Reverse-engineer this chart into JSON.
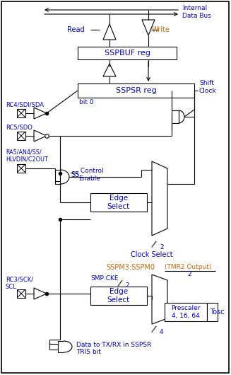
{
  "bg_color": "#ffffff",
  "line_color": "#000000",
  "text_blue": "#0000cd",
  "text_orange": "#cc6600",
  "fig_width": 3.27,
  "fig_height": 5.3,
  "dpi": 100,
  "labels": {
    "internal_data_bus": "Internal\nData Bus",
    "read": "Read",
    "write": "Write",
    "sspbuf": "SSPBUF reg",
    "sspsr": "SSPSR reg",
    "bit0": "bit 0",
    "shift_clock": "Shift\nClock",
    "rc4": "RC4/SDI/SDA",
    "rc5": "RC5/SDO",
    "ra5": "RA5/AN4/SS/\nHLVDIN/C2OUT",
    "ss_bar": "SS",
    "ss_control": " Control\nEnable",
    "edge_select1": "Edge\nSelect",
    "clock_select": "Clock Select",
    "sspm": "SSPM3:SSPM0",
    "smp_cke": "SMP:CKE",
    "edge_select2": "Edge\nSelect",
    "tmr2": "(TMR2 Output)",
    "tmr2_div": "2",
    "prescaler": "Prescaler\n4, 16, 64",
    "tosc": "Tosc",
    "rc3": "RC3/SCK/\nSCL",
    "data_tris1": "Data to TX/RX in SSPSR",
    "data_tris2": "TRIS bit",
    "slash2_clock": "2",
    "slash2_smp": "2",
    "slash4": "4"
  }
}
